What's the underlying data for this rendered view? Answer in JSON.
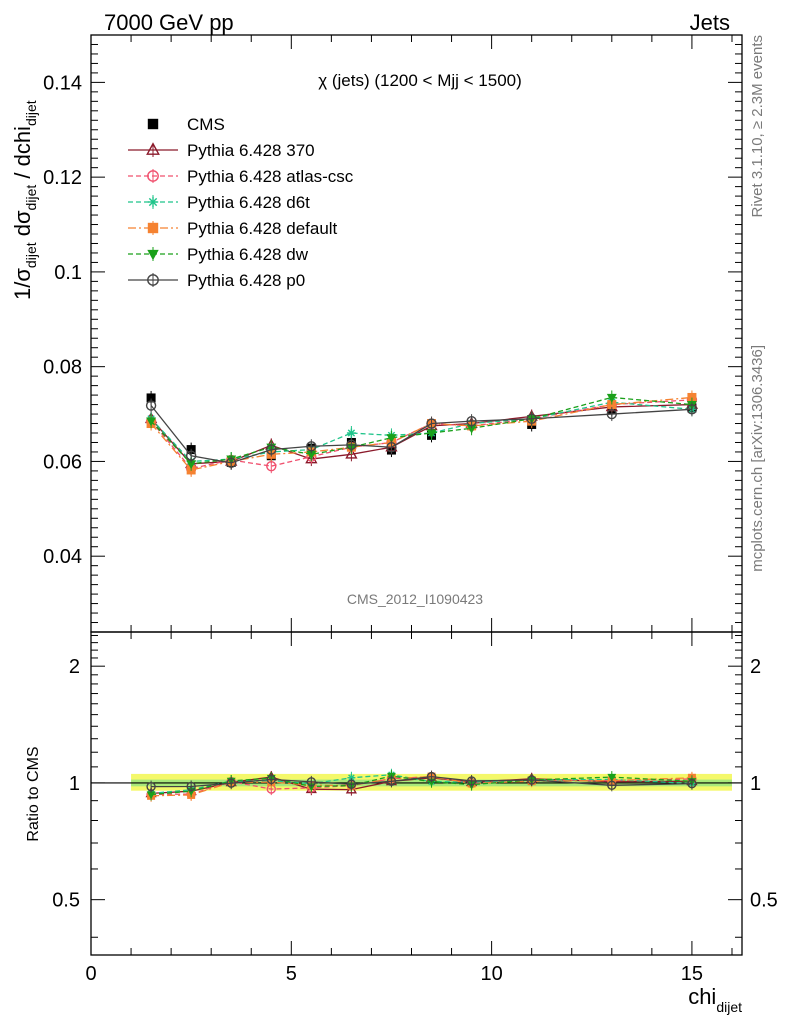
{
  "header": {
    "left": "7000 GeV pp",
    "right": "Jets"
  },
  "side": {
    "top": "Rivet 3.1.10, ≥ 2.3M events",
    "bottom": "mcplots.cern.ch [arXiv:1306.3436]"
  },
  "colors": {
    "CMS": "#000000",
    "p370": "#8b1a2b",
    "atlas": "#f0506e",
    "d6t": "#1fc48a",
    "default": "#f58231",
    "dw": "#1aa01a",
    "p0": "#444444",
    "band_outer": "#f4f86a",
    "band_inner": "#a8e87a"
  },
  "chart_data": {
    "type": "scatter",
    "title": "χ (jets) (1200 < Mjj < 1500)",
    "watermark": "CMS_2012_I1090423",
    "xlabel_main": "chi",
    "xlabel_sub": "dijet",
    "ylabel": "1/σdijet dσdijet / dchidijet",
    "ratio_ylabel": "Ratio to CMS",
    "xlim": [
      0,
      16.25
    ],
    "ylim": [
      0.024,
      0.15
    ],
    "ratio_ylim": [
      0.36,
      2.45
    ],
    "x_ticks": [
      "0",
      "5",
      "10",
      "15"
    ],
    "y_ticks": [
      "0.04",
      "0.06",
      "0.08",
      "0.1",
      "0.12",
      "0.14"
    ],
    "ratio_ticks": [
      "0.5",
      "1",
      "2"
    ],
    "legend_position": "top-left",
    "x": [
      1.5,
      2.5,
      3.5,
      4.5,
      5.5,
      6.5,
      7.5,
      8.5,
      9.5,
      11,
      13,
      15
    ],
    "series": [
      {
        "name": "CMS",
        "marker": "square-filled",
        "line": "none",
        "values": [
          0.0734,
          0.0625,
          0.0598,
          0.0612,
          0.0628,
          0.064,
          0.0624,
          0.0655,
          0.0677,
          0.0678,
          0.071,
          0.0713
        ]
      },
      {
        "name": "Pythia 6.428 370",
        "marker": "triangle-open",
        "line": "solid",
        "values": [
          0.069,
          0.0595,
          0.06,
          0.0634,
          0.0605,
          0.0615,
          0.063,
          0.0675,
          0.068,
          0.0695,
          0.0715,
          0.072
        ]
      },
      {
        "name": "Pythia 6.428 atlas-csc",
        "marker": "circle-open",
        "line": "dashed",
        "values": [
          0.0685,
          0.0585,
          0.0603,
          0.059,
          0.061,
          0.063,
          0.064,
          0.068,
          0.0675,
          0.069,
          0.072,
          0.073
        ]
      },
      {
        "name": "Pythia 6.428 d6t",
        "marker": "star",
        "line": "dashed",
        "values": [
          0.069,
          0.06,
          0.0605,
          0.062,
          0.0625,
          0.066,
          0.0655,
          0.066,
          0.068,
          0.069,
          0.0725,
          0.071
        ]
      },
      {
        "name": "Pythia 6.428 default",
        "marker": "square-filled",
        "line": "dashdot",
        "values": [
          0.068,
          0.0582,
          0.06,
          0.0615,
          0.062,
          0.063,
          0.064,
          0.068,
          0.0675,
          0.0685,
          0.072,
          0.0735
        ]
      },
      {
        "name": "Pythia 6.428 dw",
        "marker": "triangle-down-filled",
        "line": "dashed",
        "values": [
          0.0685,
          0.0595,
          0.0605,
          0.063,
          0.0615,
          0.063,
          0.065,
          0.066,
          0.067,
          0.069,
          0.0735,
          0.072
        ]
      },
      {
        "name": "Pythia 6.428 p0",
        "marker": "circle-open",
        "line": "solid",
        "values": [
          0.0718,
          0.0612,
          0.0597,
          0.0625,
          0.0632,
          0.0635,
          0.063,
          0.068,
          0.0685,
          0.069,
          0.07,
          0.071
        ]
      }
    ],
    "ratio_band": {
      "x": [
        1,
        16
      ],
      "outer": [
        0.955,
        1.055
      ],
      "inner": [
        0.98,
        1.02
      ]
    }
  }
}
